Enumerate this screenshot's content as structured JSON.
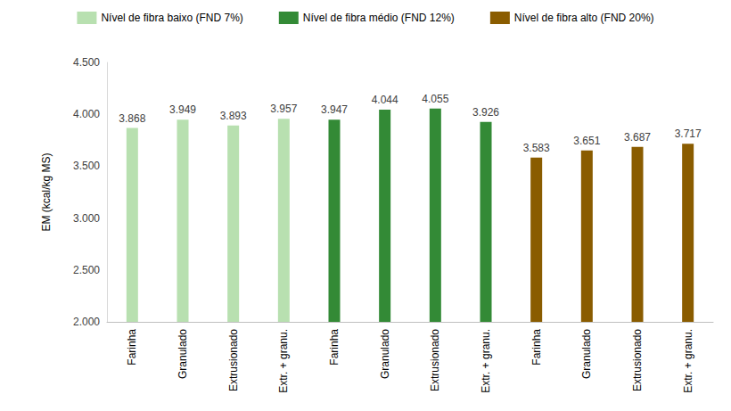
{
  "chart_data": {
    "type": "bar",
    "y_label": "EM (kcal/kg MS)",
    "categories": [
      "Farinha",
      "Granulado",
      "Extrusionado",
      "Extr. + granu.",
      "Farinha",
      "Granulado",
      "Extrusionado",
      "Extr. + granu.",
      "Farinha",
      "Granulado",
      "Extrusionado",
      "Extr. + granu."
    ],
    "series": [
      {
        "name": "Nível de fibra baixo (FND 7%)",
        "color": "#b8e0b0",
        "values": [
          3868,
          3949,
          3893,
          3957,
          null,
          null,
          null,
          null,
          null,
          null,
          null,
          null
        ],
        "value_labels": [
          "3.868",
          "3.949",
          "3.893",
          "3.957",
          null,
          null,
          null,
          null,
          null,
          null,
          null,
          null
        ]
      },
      {
        "name": "Nível de fibra médio (FND 12%)",
        "color": "#338a36",
        "values": [
          null,
          null,
          null,
          null,
          3947,
          4044,
          4055,
          3926,
          null,
          null,
          null,
          null
        ],
        "value_labels": [
          null,
          null,
          null,
          null,
          "3.947",
          "4.044",
          "4.055",
          "3.926",
          null,
          null,
          null,
          null
        ]
      },
      {
        "name": "Nível de fibra alto (FND 20%)",
        "color": "#8a5c00",
        "values": [
          null,
          null,
          null,
          null,
          null,
          null,
          null,
          null,
          3583,
          3651,
          3687,
          3717
        ],
        "value_labels": [
          null,
          null,
          null,
          null,
          null,
          null,
          null,
          null,
          "3.583",
          "3.651",
          "3.687",
          "3.717"
        ]
      }
    ],
    "ylim": [
      2000,
      4500
    ],
    "yticks": [
      {
        "value": 2000,
        "label": "2.000"
      },
      {
        "value": 2500,
        "label": "2.500"
      },
      {
        "value": 3000,
        "label": "3.000"
      },
      {
        "value": 3500,
        "label": "3.500"
      },
      {
        "value": 4000,
        "label": "4.000"
      },
      {
        "value": 4500,
        "label": "4.500"
      }
    ],
    "legend": "top",
    "grid": false,
    "data_labels": true
  }
}
